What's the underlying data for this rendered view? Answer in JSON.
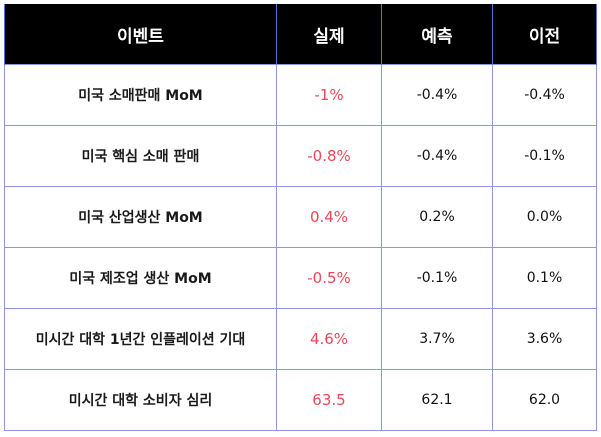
{
  "table": {
    "headers": [
      "이벤트",
      "실제",
      "예측",
      "이전"
    ],
    "rows": [
      {
        "event": "미국 소매판매 MoM",
        "actual": "-1%",
        "forecast": "-0.4%",
        "previous": "-0.4%"
      },
      {
        "event": "미국 핵심 소매 판매",
        "actual": "-0.8%",
        "forecast": "-0.4%",
        "previous": "-0.1%"
      },
      {
        "event": "미국 산업생산 MoM",
        "actual": "0.4%",
        "forecast": "0.2%",
        "previous": "0.0%"
      },
      {
        "event": "미국 제조업 생산 MoM",
        "actual": "-0.5%",
        "forecast": "-0.1%",
        "previous": "0.1%"
      },
      {
        "event": "미시간 대학 1년간 인플레이션 기대",
        "actual": "4.6%",
        "forecast": "3.7%",
        "previous": "3.6%"
      },
      {
        "event": "미시간 대학 소비자 심리",
        "actual": "63.5",
        "forecast": "62.1",
        "previous": "62.0"
      }
    ]
  },
  "colors": {
    "header_background": "#000000",
    "header_text": "#ffffff",
    "actual_value": "#e8485a",
    "grid_line": "#8b96e6"
  }
}
